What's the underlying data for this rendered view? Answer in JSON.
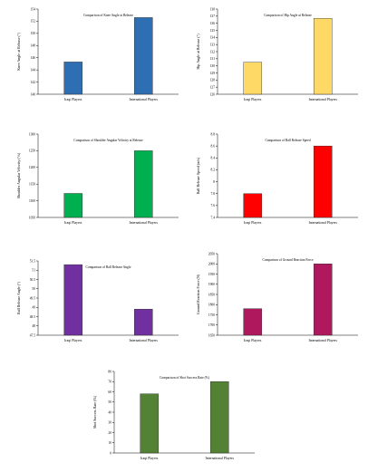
{
  "chart_data": [
    {
      "type": "bar",
      "title": "Comparison of Knee Angle at Release",
      "ylabel": "Knee Angle at Release (°)",
      "categories": [
        "Iraqi Players",
        "International Players"
      ],
      "values": [
        145.3,
        152.6
      ],
      "ylim": [
        140,
        154
      ],
      "yticks": [
        140,
        142,
        144,
        146,
        148,
        150,
        152,
        154
      ],
      "color": "#2e6fb3",
      "grid": false
    },
    {
      "type": "bar",
      "title": "Comparison of Hip Angle at Release",
      "ylabel": "Hip Angle at Release (°)",
      "categories": [
        "Iraqi Players",
        "International Players"
      ],
      "values": [
        130.5,
        136.7
      ],
      "ylim": [
        126,
        138
      ],
      "yticks": [
        126,
        127,
        128,
        129,
        130,
        131,
        132,
        133,
        134,
        135,
        136,
        137,
        138
      ],
      "color": "#ffd966",
      "grid": false
    },
    {
      "type": "bar",
      "title": "Comparison of Shoulder Angular Velocity at Release",
      "ylabel": "Shoulder Angular Velocity (°/s)",
      "categories": [
        "Iraqi Players",
        "International Players"
      ],
      "values": [
        1122,
        1250
      ],
      "ylim": [
        1050,
        1300
      ],
      "yticks": [
        1050,
        1100,
        1150,
        1200,
        1250,
        1300
      ],
      "color": "#00b050",
      "grid": false
    },
    {
      "type": "bar",
      "title": "Comparison of Ball Release Speed",
      "ylabel": "Ball Release Speed (m/s)",
      "categories": [
        "Iraqi Players",
        "International Players"
      ],
      "values": [
        7.8,
        8.6
      ],
      "ylim": [
        7.4,
        8.8
      ],
      "yticks": [
        7.4,
        7.6,
        7.8,
        8,
        8.2,
        8.4,
        8.6,
        8.8
      ],
      "color": "#ff0000",
      "grid": false
    },
    {
      "type": "bar",
      "title": "Comparison of Ball Release Angle",
      "ylabel": "Ball Release Angle (°)",
      "categories": [
        "Iraqi Players",
        "International Players"
      ],
      "values": [
        51.3,
        48.9
      ],
      "ylim": [
        47.5,
        51.5
      ],
      "yticks": [
        47.5,
        48,
        48.5,
        49,
        49.5,
        50,
        50.5,
        51,
        51.5
      ],
      "color": "#7030a0",
      "grid": false
    },
    {
      "type": "bar",
      "title": "Comparison of Ground Reaction Force",
      "ylabel": "Ground Reaction Force (N)",
      "categories": [
        "Iraqi Players",
        "International Players"
      ],
      "values": [
        1780,
        2000
      ],
      "ylim": [
        1650,
        2050
      ],
      "yticks": [
        1650,
        1700,
        1750,
        1800,
        1850,
        1900,
        1950,
        2000,
        2050
      ],
      "color": "#b0185e",
      "grid": false
    },
    {
      "type": "bar",
      "title": "Comparison of Shot Success Rate (%)",
      "ylabel": "Shot Success Rate (%)",
      "categories": [
        "Iraqi Players",
        "International Players"
      ],
      "values": [
        58,
        70
      ],
      "ylim": [
        0,
        80
      ],
      "yticks": [
        0,
        10,
        20,
        30,
        40,
        50,
        60,
        70,
        80
      ],
      "color": "#548235",
      "grid": false
    }
  ]
}
